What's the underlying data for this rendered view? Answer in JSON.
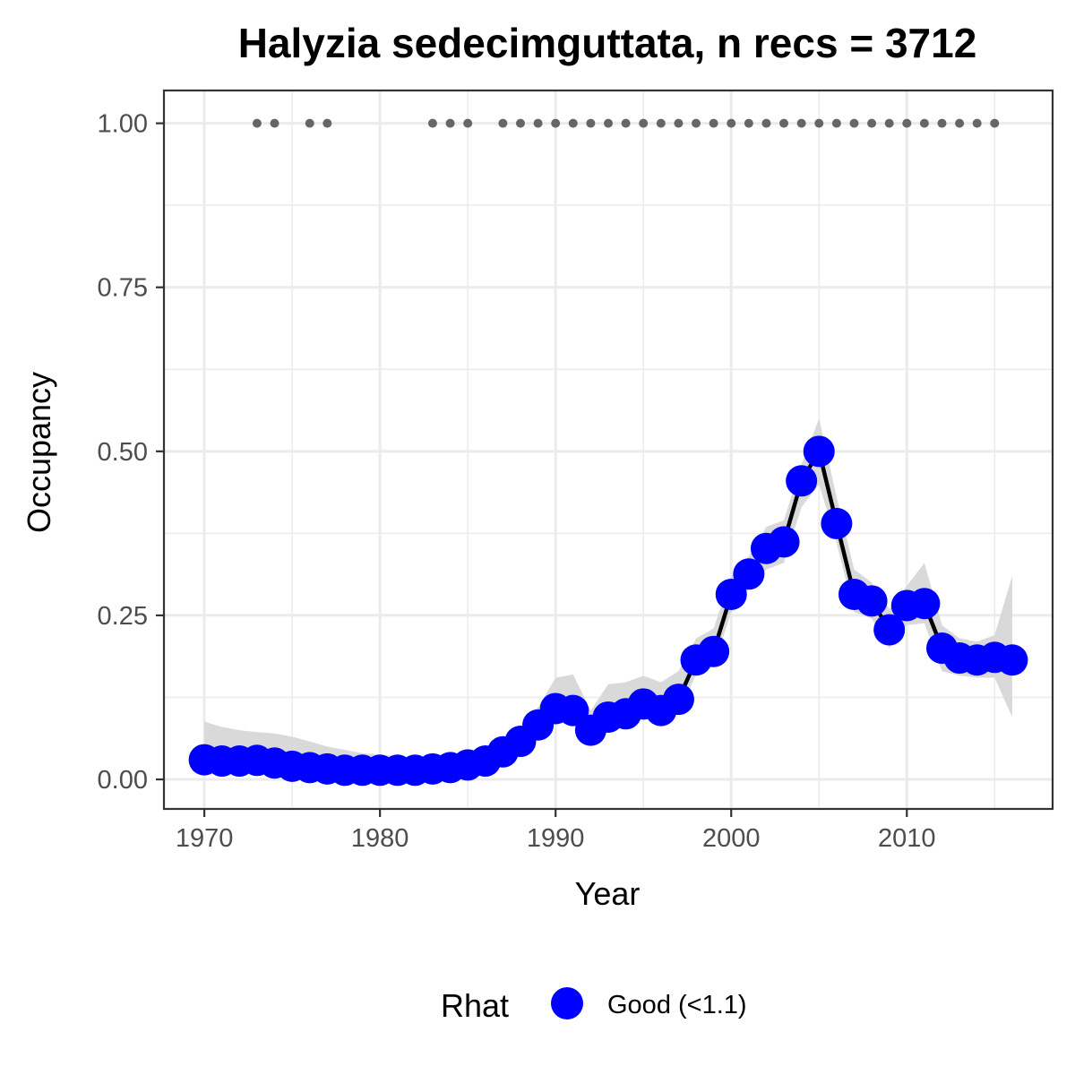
{
  "chart_data": {
    "type": "line",
    "title": "Halyzia sedecimguttata, n recs = 3712",
    "xlabel": "Year",
    "ylabel": "Occupancy",
    "xlim": [
      1967.7,
      1956.0
    ],
    "ylim": [
      -0.045,
      1.05
    ],
    "x_ticks": [
      1970,
      1980,
      1990,
      2000,
      2010
    ],
    "x_tick_labels": [
      "1970",
      "1980",
      "1990",
      "2000",
      "2010"
    ],
    "y_ticks": [
      0,
      0.25,
      0.5,
      0.75,
      1.0
    ],
    "y_tick_labels": [
      "0.00",
      "0.25",
      "0.50",
      "0.75",
      "1.00"
    ],
    "grid": true,
    "legend": {
      "title": "Rhat",
      "position": "bottom",
      "entries": [
        {
          "label": "Good (<1.1)",
          "color": "#0000ff"
        }
      ]
    },
    "colors": {
      "points": "#0000ff",
      "line": "#000000",
      "ribbon": "#d9d9d9",
      "record_dots": "#666666",
      "grid": "#ebebeb",
      "panel_border": "#333333"
    },
    "series": [
      {
        "name": "Good (<1.1)",
        "x": [
          1970,
          1971,
          1972,
          1973,
          1974,
          1975,
          1976,
          1977,
          1978,
          1979,
          1980,
          1981,
          1982,
          1983,
          1984,
          1985,
          1986,
          1987,
          1988,
          1989,
          1990,
          1991,
          1992,
          1993,
          1994,
          1995,
          1996,
          1997,
          1998,
          1999,
          2000,
          2001,
          2002,
          2003,
          2004,
          2005,
          2006,
          2007,
          2008,
          2009,
          2010,
          2011,
          2012,
          2013,
          2014,
          2015,
          2016
        ],
        "y": [
          0.03,
          0.028,
          0.028,
          0.029,
          0.025,
          0.02,
          0.018,
          0.016,
          0.014,
          0.014,
          0.014,
          0.014,
          0.014,
          0.016,
          0.018,
          0.022,
          0.028,
          0.042,
          0.058,
          0.083,
          0.108,
          0.105,
          0.075,
          0.095,
          0.1,
          0.115,
          0.105,
          0.122,
          0.182,
          0.195,
          0.282,
          0.313,
          0.352,
          0.362,
          0.455,
          0.5,
          0.39,
          0.282,
          0.272,
          0.228,
          0.265,
          0.268,
          0.2,
          0.185,
          0.182,
          0.186,
          0.182
        ],
        "lower": [
          0.018,
          0.016,
          0.016,
          0.017,
          0.014,
          0.011,
          0.009,
          0.008,
          0.007,
          0.007,
          0.007,
          0.007,
          0.007,
          0.008,
          0.01,
          0.013,
          0.018,
          0.03,
          0.045,
          0.068,
          0.085,
          0.09,
          0.06,
          0.078,
          0.082,
          0.097,
          0.088,
          0.1,
          0.16,
          0.172,
          0.255,
          0.29,
          0.32,
          0.33,
          0.415,
          0.45,
          0.36,
          0.255,
          0.245,
          0.2,
          0.235,
          0.238,
          0.165,
          0.158,
          0.155,
          0.155,
          0.095
        ],
        "upper": [
          0.088,
          0.08,
          0.075,
          0.072,
          0.07,
          0.065,
          0.058,
          0.05,
          0.045,
          0.04,
          0.038,
          0.035,
          0.033,
          0.033,
          0.034,
          0.036,
          0.042,
          0.058,
          0.078,
          0.11,
          0.155,
          0.16,
          0.105,
          0.145,
          0.148,
          0.158,
          0.148,
          0.165,
          0.215,
          0.23,
          0.31,
          0.34,
          0.385,
          0.395,
          0.48,
          0.55,
          0.43,
          0.32,
          0.3,
          0.26,
          0.295,
          0.33,
          0.235,
          0.215,
          0.21,
          0.22,
          0.31
        ]
      }
    ],
    "record_years": [
      1973,
      1974,
      1976,
      1977,
      1983,
      1984,
      1985,
      1987,
      1988,
      1989,
      1990,
      1991,
      1992,
      1993,
      1994,
      1995,
      1996,
      1997,
      1998,
      1999,
      2000,
      2001,
      2002,
      2003,
      2004,
      2005,
      2006,
      2007,
      2008,
      2009,
      2010,
      2011,
      2012,
      2013,
      2014,
      2015
    ],
    "record_y": 1.0
  }
}
